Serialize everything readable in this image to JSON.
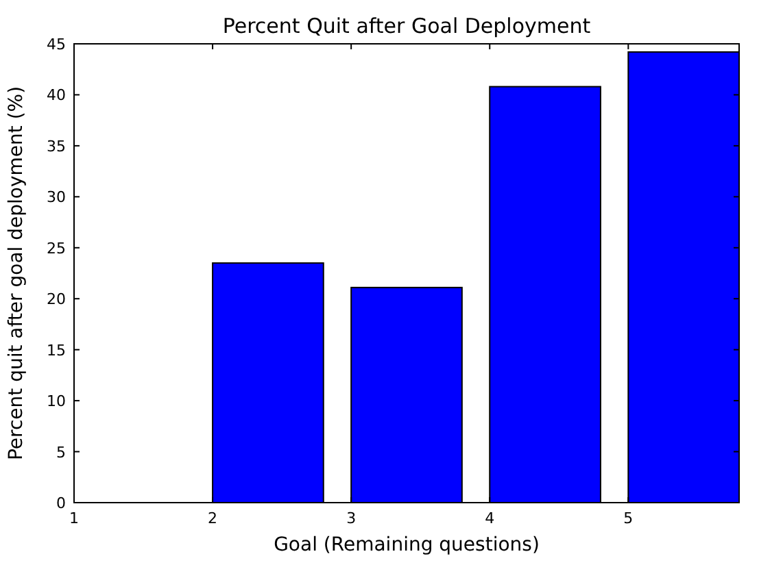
{
  "chart_data": {
    "type": "bar",
    "title": "Percent Quit after Goal Deployment",
    "xlabel": "Goal (Remaining questions)",
    "ylabel": "Percent quit after goal deployment (%)",
    "x": [
      1.4,
      2.4,
      3.4,
      4.4,
      5.4
    ],
    "values": [
      0,
      23.5,
      21.1,
      40.8,
      44.2
    ],
    "color": "#0000ff",
    "xlim": [
      1,
      5.8
    ],
    "xticks": [
      1,
      2,
      3,
      4,
      5
    ],
    "ylim": [
      0,
      45
    ],
    "yticks": [
      0,
      5,
      10,
      15,
      20,
      25,
      30,
      35,
      40,
      45
    ],
    "grid": false
  }
}
